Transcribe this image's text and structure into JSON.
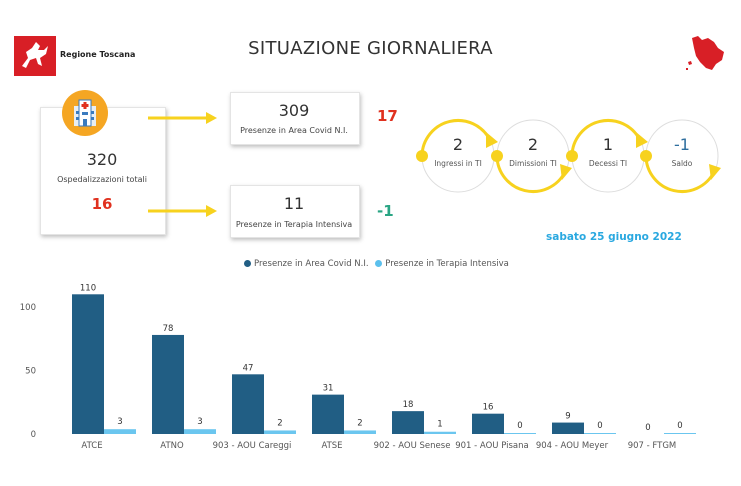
{
  "header": {
    "org_name": "Regione Toscana",
    "title": "SITUAZIONE GIORNALIERA"
  },
  "hospital": {
    "total": "320",
    "total_label": "Ospedalizzazioni totali",
    "delta": "16"
  },
  "covid_area": {
    "value": "309",
    "label": "Presenze in Area Covid N.I.",
    "delta": "17"
  },
  "intensive": {
    "value": "11",
    "label": "Presenze in Terapia Intensiva",
    "delta": "-1"
  },
  "flow": [
    {
      "value": "2",
      "label": "Ingressi in TI"
    },
    {
      "value": "2",
      "label": "Dimissioni TI"
    },
    {
      "value": "1",
      "label": "Decessi TI"
    },
    {
      "value": "-1",
      "label": "Saldo"
    }
  ],
  "date": "sabato 25 giugno 2022",
  "colors": {
    "dark_bar": "#215e84",
    "light_bar": "#5bc0ed",
    "arrow": "#f7d21e",
    "delta_up": "#e0311f",
    "delta_down": "#2aa584",
    "date": "#29a8e0",
    "brand_red": "#d81f26"
  },
  "chart_data": {
    "type": "bar",
    "categories": [
      "ATCE",
      "ATNO",
      "903 - AOU Careggi",
      "ATSE",
      "902 - AOU Senese",
      "901 - AOU Pisana",
      "904 - AOU Meyer",
      "907 - FTGM"
    ],
    "series": [
      {
        "name": "Presenze in Area Covid N.I.",
        "values": [
          110,
          78,
          47,
          31,
          18,
          16,
          9,
          0
        ]
      },
      {
        "name": "Presenze in Terapia Intensiva",
        "values": [
          3,
          3,
          2,
          2,
          1,
          0,
          0,
          0
        ]
      }
    ],
    "yticks": [
      "0",
      "50",
      "100"
    ],
    "ylim": [
      0,
      120
    ],
    "legend_position": "top-center",
    "grid": false
  }
}
